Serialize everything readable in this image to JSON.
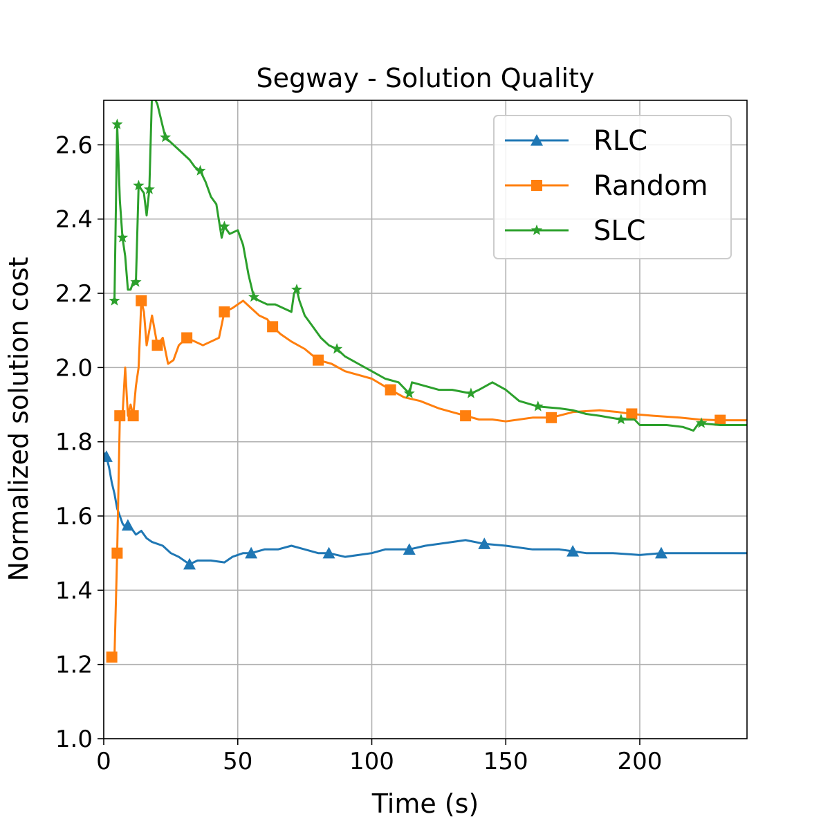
{
  "chart_data": {
    "type": "line",
    "title": "Segway - Solution Quality",
    "xlabel": "Time (s)",
    "ylabel": "Normalized solution cost",
    "xlim": [
      0,
      240
    ],
    "ylim": [
      1.0,
      2.72
    ],
    "xticks": [
      0,
      50,
      100,
      150,
      200
    ],
    "xtick_labels": [
      "0",
      "50",
      "100",
      "150",
      "200"
    ],
    "yticks": [
      1.0,
      1.2,
      1.4,
      1.6,
      1.8,
      2.0,
      2.2,
      2.4,
      2.6
    ],
    "ytick_labels": [
      "1.0",
      "1.2",
      "1.4",
      "1.6",
      "1.8",
      "2.0",
      "2.2",
      "2.4",
      "2.6"
    ],
    "grid": true,
    "legend_position": "top-right",
    "series": [
      {
        "name": "RLC",
        "color": "#1f77b4",
        "marker": "triangle",
        "points": [
          [
            0,
            1.77
          ],
          [
            1,
            1.76
          ],
          [
            2,
            1.73
          ],
          [
            3,
            1.69
          ],
          [
            4,
            1.66
          ],
          [
            5,
            1.62
          ],
          [
            6,
            1.6
          ],
          [
            7,
            1.58
          ],
          [
            8,
            1.57
          ],
          [
            9,
            1.575
          ],
          [
            10,
            1.57
          ],
          [
            12,
            1.55
          ],
          [
            14,
            1.56
          ],
          [
            16,
            1.54
          ],
          [
            18,
            1.53
          ],
          [
            22,
            1.52
          ],
          [
            25,
            1.5
          ],
          [
            28,
            1.49
          ],
          [
            32,
            1.47
          ],
          [
            35,
            1.48
          ],
          [
            40,
            1.48
          ],
          [
            45,
            1.475
          ],
          [
            48,
            1.49
          ],
          [
            52,
            1.5
          ],
          [
            55,
            1.5
          ],
          [
            60,
            1.51
          ],
          [
            65,
            1.51
          ],
          [
            70,
            1.52
          ],
          [
            75,
            1.51
          ],
          [
            80,
            1.5
          ],
          [
            84,
            1.5
          ],
          [
            90,
            1.49
          ],
          [
            100,
            1.5
          ],
          [
            105,
            1.51
          ],
          [
            110,
            1.51
          ],
          [
            114,
            1.51
          ],
          [
            120,
            1.52
          ],
          [
            130,
            1.53
          ],
          [
            135,
            1.535
          ],
          [
            142,
            1.525
          ],
          [
            150,
            1.52
          ],
          [
            160,
            1.51
          ],
          [
            170,
            1.51
          ],
          [
            175,
            1.505
          ],
          [
            180,
            1.5
          ],
          [
            190,
            1.5
          ],
          [
            200,
            1.495
          ],
          [
            208,
            1.5
          ],
          [
            240,
            1.5
          ]
        ],
        "marker_points": [
          [
            1,
            1.76
          ],
          [
            9,
            1.575
          ],
          [
            32,
            1.47
          ],
          [
            55,
            1.5
          ],
          [
            84,
            1.5
          ],
          [
            114,
            1.51
          ],
          [
            142,
            1.525
          ],
          [
            175,
            1.505
          ],
          [
            208,
            1.5
          ]
        ]
      },
      {
        "name": "Random",
        "color": "#ff7f0e",
        "marker": "square",
        "points": [
          [
            3,
            1.22
          ],
          [
            4,
            1.22
          ],
          [
            5,
            1.5
          ],
          [
            6,
            1.87
          ],
          [
            7,
            1.87
          ],
          [
            8,
            2.0
          ],
          [
            9,
            1.87
          ],
          [
            10,
            1.9
          ],
          [
            11,
            1.87
          ],
          [
            12,
            1.95
          ],
          [
            13,
            2.0
          ],
          [
            14,
            2.18
          ],
          [
            15,
            2.15
          ],
          [
            16,
            2.06
          ],
          [
            17,
            2.1
          ],
          [
            18,
            2.14
          ],
          [
            20,
            2.06
          ],
          [
            22,
            2.08
          ],
          [
            24,
            2.01
          ],
          [
            26,
            2.02
          ],
          [
            28,
            2.06
          ],
          [
            31,
            2.08
          ],
          [
            34,
            2.07
          ],
          [
            37,
            2.06
          ],
          [
            40,
            2.07
          ],
          [
            43,
            2.08
          ],
          [
            45,
            2.15
          ],
          [
            48,
            2.16
          ],
          [
            52,
            2.18
          ],
          [
            55,
            2.16
          ],
          [
            58,
            2.14
          ],
          [
            61,
            2.13
          ],
          [
            63,
            2.11
          ],
          [
            66,
            2.09
          ],
          [
            70,
            2.07
          ],
          [
            75,
            2.05
          ],
          [
            80,
            2.02
          ],
          [
            85,
            2.01
          ],
          [
            90,
            1.99
          ],
          [
            95,
            1.98
          ],
          [
            100,
            1.97
          ],
          [
            107,
            1.94
          ],
          [
            112,
            1.92
          ],
          [
            118,
            1.91
          ],
          [
            125,
            1.89
          ],
          [
            130,
            1.88
          ],
          [
            135,
            1.87
          ],
          [
            140,
            1.86
          ],
          [
            145,
            1.86
          ],
          [
            150,
            1.855
          ],
          [
            155,
            1.86
          ],
          [
            160,
            1.865
          ],
          [
            167,
            1.865
          ],
          [
            175,
            1.88
          ],
          [
            185,
            1.885
          ],
          [
            192,
            1.88
          ],
          [
            197,
            1.875
          ],
          [
            205,
            1.87
          ],
          [
            215,
            1.865
          ],
          [
            222,
            1.86
          ],
          [
            230,
            1.858
          ],
          [
            240,
            1.858
          ]
        ],
        "marker_points": [
          [
            3,
            1.22
          ],
          [
            5,
            1.5
          ],
          [
            6,
            1.87
          ],
          [
            11,
            1.87
          ],
          [
            14,
            2.18
          ],
          [
            20,
            2.06
          ],
          [
            31,
            2.08
          ],
          [
            45,
            2.15
          ],
          [
            63,
            2.11
          ],
          [
            80,
            2.02
          ],
          [
            107,
            1.94
          ],
          [
            135,
            1.87
          ],
          [
            167,
            1.865
          ],
          [
            197,
            1.875
          ],
          [
            230,
            1.858
          ]
        ]
      },
      {
        "name": "SLC",
        "color": "#2ca02c",
        "marker": "star",
        "points": [
          [
            4,
            2.18
          ],
          [
            5,
            2.655
          ],
          [
            6,
            2.45
          ],
          [
            7,
            2.35
          ],
          [
            8,
            2.3
          ],
          [
            9,
            2.21
          ],
          [
            10,
            2.21
          ],
          [
            11,
            2.23
          ],
          [
            12,
            2.23
          ],
          [
            13,
            2.49
          ],
          [
            14,
            2.48
          ],
          [
            15,
            2.47
          ],
          [
            16,
            2.41
          ],
          [
            17,
            2.48
          ],
          [
            18,
            2.74
          ],
          [
            20,
            2.71
          ],
          [
            23,
            2.62
          ],
          [
            26,
            2.6
          ],
          [
            29,
            2.58
          ],
          [
            32,
            2.56
          ],
          [
            34,
            2.54
          ],
          [
            36,
            2.53
          ],
          [
            38,
            2.5
          ],
          [
            40,
            2.46
          ],
          [
            42,
            2.44
          ],
          [
            44,
            2.35
          ],
          [
            45,
            2.38
          ],
          [
            47,
            2.36
          ],
          [
            50,
            2.37
          ],
          [
            52,
            2.33
          ],
          [
            54,
            2.25
          ],
          [
            56,
            2.19
          ],
          [
            58,
            2.18
          ],
          [
            61,
            2.17
          ],
          [
            64,
            2.17
          ],
          [
            67,
            2.16
          ],
          [
            70,
            2.15
          ],
          [
            71,
            2.2
          ],
          [
            72,
            2.21
          ],
          [
            73,
            2.18
          ],
          [
            75,
            2.14
          ],
          [
            78,
            2.11
          ],
          [
            81,
            2.08
          ],
          [
            84,
            2.06
          ],
          [
            87,
            2.05
          ],
          [
            90,
            2.03
          ],
          [
            95,
            2.01
          ],
          [
            100,
            1.99
          ],
          [
            105,
            1.97
          ],
          [
            110,
            1.96
          ],
          [
            114,
            1.93
          ],
          [
            115,
            1.96
          ],
          [
            120,
            1.95
          ],
          [
            125,
            1.94
          ],
          [
            130,
            1.94
          ],
          [
            137,
            1.93
          ],
          [
            140,
            1.94
          ],
          [
            145,
            1.96
          ],
          [
            150,
            1.94
          ],
          [
            155,
            1.91
          ],
          [
            162,
            1.895
          ],
          [
            170,
            1.89
          ],
          [
            175,
            1.885
          ],
          [
            180,
            1.875
          ],
          [
            185,
            1.87
          ],
          [
            193,
            1.86
          ],
          [
            198,
            1.86
          ],
          [
            200,
            1.845
          ],
          [
            210,
            1.845
          ],
          [
            216,
            1.84
          ],
          [
            220,
            1.83
          ],
          [
            222,
            1.85
          ],
          [
            230,
            1.845
          ],
          [
            240,
            1.845
          ]
        ],
        "marker_points": [
          [
            4,
            2.18
          ],
          [
            5,
            2.655
          ],
          [
            7,
            2.35
          ],
          [
            12,
            2.23
          ],
          [
            13,
            2.49
          ],
          [
            17,
            2.48
          ],
          [
            23,
            2.62
          ],
          [
            36,
            2.53
          ],
          [
            45,
            2.38
          ],
          [
            56,
            2.19
          ],
          [
            72,
            2.21
          ],
          [
            87,
            2.05
          ],
          [
            114,
            1.93
          ],
          [
            137,
            1.93
          ],
          [
            162,
            1.895
          ],
          [
            193,
            1.86
          ],
          [
            223,
            1.85
          ]
        ]
      }
    ]
  }
}
